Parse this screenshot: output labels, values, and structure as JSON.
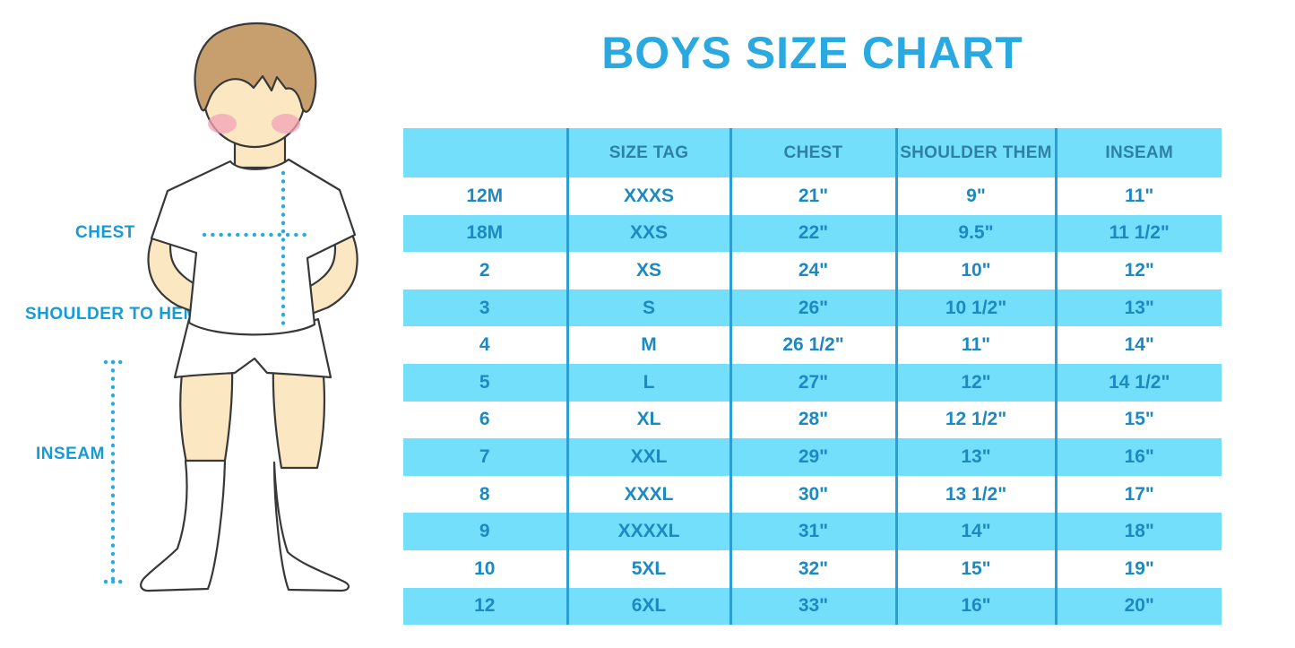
{
  "title": "BOYS SIZE CHART",
  "diagram": {
    "labels": [
      {
        "id": "chest",
        "text": "CHEST"
      },
      {
        "id": "shoulder_to_hem",
        "text": "SHOULDER TO HEM"
      },
      {
        "id": "inseam",
        "text": "INSEAM"
      }
    ]
  },
  "chart_data": {
    "type": "table",
    "title": "BOYS SIZE CHART",
    "columns": [
      "",
      "SIZE TAG",
      "CHEST",
      "SHOULDER THEM",
      "INSEAM"
    ],
    "rows": [
      [
        "12M",
        "XXXS",
        "21\"",
        "9\"",
        "11\""
      ],
      [
        "18M",
        "XXS",
        "22\"",
        "9.5\"",
        "11 1/2\""
      ],
      [
        "2",
        "XS",
        "24\"",
        "10\"",
        "12\""
      ],
      [
        "3",
        "S",
        "26\"",
        "10 1/2\"",
        "13\""
      ],
      [
        "4",
        "M",
        "26 1/2\"",
        "11\"",
        "14\""
      ],
      [
        "5",
        "L",
        "27\"",
        "12\"",
        "14 1/2\""
      ],
      [
        "6",
        "XL",
        "28\"",
        "12 1/2\"",
        "15\""
      ],
      [
        "7",
        "XXL",
        "29\"",
        "13\"",
        "16\""
      ],
      [
        "8",
        "XXXL",
        "30\"",
        "13 1/2\"",
        "17\""
      ],
      [
        "9",
        "XXXXL",
        "31\"",
        "14\"",
        "18\""
      ],
      [
        "10",
        "5XL",
        "32\"",
        "15\"",
        "19\""
      ],
      [
        "12",
        "6XL",
        "33\"",
        "16\"",
        "20\""
      ]
    ]
  },
  "colors": {
    "title_blue": "#29A9E0",
    "stripe_blue": "#74DFFB",
    "divider_blue": "#2B9FD3",
    "cell_text_blue": "#1C89C2",
    "header_text_blue": "#2E81A6",
    "label_blue": "#169BD7",
    "dotted_line_blue": "#29ABE2",
    "skin": "#FBE7C2",
    "hair": "#C79F6F",
    "blush": "#F2A3B6",
    "outline": "#383838"
  }
}
